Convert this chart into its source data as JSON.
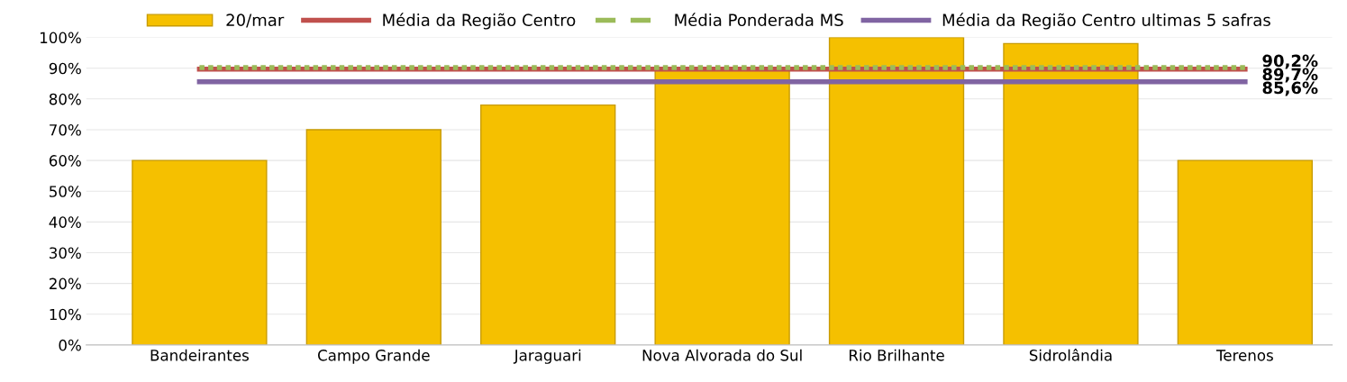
{
  "chart_data": {
    "type": "bar",
    "categories": [
      "Bandeirantes",
      "Campo Grande",
      "Jaraguari",
      "Nova Alvorada do Sul",
      "Rio Brilhante",
      "Sidrolândia",
      "Terenos"
    ],
    "series": [
      {
        "name": "20/mar",
        "color": "#f5c000",
        "values": [
          60,
          70,
          78,
          90,
          100,
          98,
          60
        ]
      },
      {
        "name": "Média da Região Centro",
        "type": "line",
        "color": "#c0504d",
        "line_style": "solid",
        "values": [
          89.7,
          89.7,
          89.7,
          89.7,
          89.7,
          89.7,
          89.7
        ],
        "value_labels": [
          null,
          null,
          null,
          null,
          null,
          null,
          "89,7%"
        ]
      },
      {
        "name": "Média Ponderada MS",
        "type": "line",
        "color": "#9bbb59",
        "line_style": "dashed",
        "values": [
          90.2,
          90.2,
          90.2,
          90.2,
          90.2,
          90.2,
          90.2
        ],
        "value_labels": [
          null,
          null,
          null,
          null,
          null,
          null,
          "90,2%"
        ]
      },
      {
        "name": "Média da Região Centro ultimas 5 safras",
        "type": "line",
        "color": "#8064a2",
        "line_style": "solid",
        "values": [
          85.6,
          85.6,
          85.6,
          85.6,
          85.6,
          85.6,
          85.6
        ],
        "value_labels": [
          null,
          null,
          null,
          null,
          null,
          null,
          "85,6%"
        ]
      }
    ],
    "ylim": [
      0,
      100
    ],
    "yticks": [
      {
        "value": 0,
        "label": "0%"
      },
      {
        "value": 10,
        "label": "10%"
      },
      {
        "value": 20,
        "label": "20%"
      },
      {
        "value": 30,
        "label": "30%"
      },
      {
        "value": 40,
        "label": "40%"
      },
      {
        "value": 50,
        "label": "50%"
      },
      {
        "value": 60,
        "label": "60%"
      },
      {
        "value": 70,
        "label": "70%"
      },
      {
        "value": 80,
        "label": "80%"
      },
      {
        "value": 90,
        "label": "90%"
      },
      {
        "value": 100,
        "label": "100%"
      }
    ],
    "grid": "y",
    "legend": "top"
  }
}
